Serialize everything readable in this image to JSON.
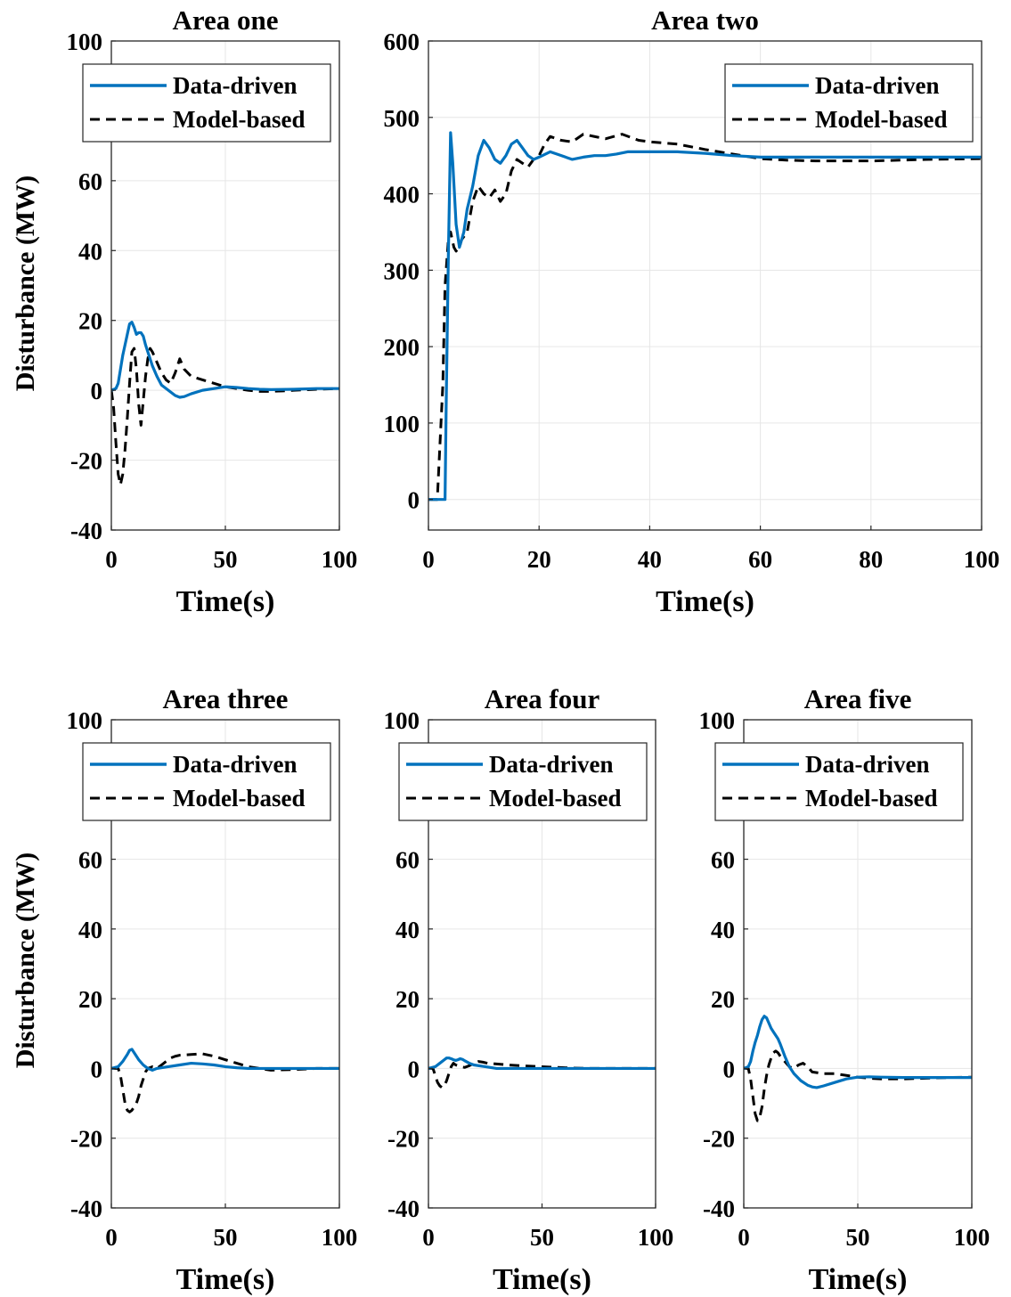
{
  "colors": {
    "data_driven": "#0072bd",
    "model_based": "#000000",
    "grid": "#e6e6e6"
  },
  "y_label": "Disturbance (MW)",
  "chart_data": [
    {
      "type": "line",
      "title": "Area one",
      "xlabel": "Time(s)",
      "ylabel": "Disturbance (MW)",
      "xlim": [
        0,
        100
      ],
      "ylim": [
        -40,
        100
      ],
      "xticks": [
        0,
        50,
        100
      ],
      "yticks": [
        -40,
        -20,
        0,
        20,
        40,
        60,
        100
      ],
      "grid": true,
      "legend_position": "top-right",
      "series": [
        {
          "name": "Data-driven",
          "style": "solid",
          "x": [
            0,
            2,
            3,
            4,
            5,
            6,
            7,
            8,
            9,
            10,
            11,
            12,
            13,
            14,
            15,
            16,
            18,
            20,
            22,
            25,
            28,
            30,
            32,
            35,
            40,
            45,
            50,
            55,
            60,
            65,
            70,
            80,
            90,
            100
          ],
          "y": [
            0,
            0.5,
            2,
            6,
            10,
            13,
            16,
            19,
            19.5,
            18,
            16,
            16.5,
            16.5,
            15.5,
            13,
            11,
            7,
            4,
            1.5,
            0,
            -1.5,
            -2,
            -1.8,
            -1,
            0,
            0.5,
            1,
            0.8,
            0.5,
            0.3,
            0.2,
            0.3,
            0.5,
            0.5
          ]
        },
        {
          "name": "Model-based",
          "style": "dashed",
          "x": [
            0,
            1,
            2,
            3,
            4,
            5,
            6,
            7,
            8,
            9,
            10,
            11,
            12,
            13,
            14,
            15,
            16,
            17,
            18,
            20,
            22,
            24,
            26,
            28,
            30,
            32,
            35,
            40,
            45,
            50,
            55,
            60,
            65,
            70,
            75,
            80,
            90,
            100
          ],
          "y": [
            0,
            -5,
            -15,
            -24,
            -27,
            -24,
            -17,
            -8,
            2,
            11,
            12,
            6,
            -4,
            -10,
            -3,
            4,
            9,
            12,
            11,
            8,
            5,
            3,
            2,
            5,
            9,
            6,
            4,
            3,
            2,
            1,
            0.5,
            0,
            -0.3,
            -0.3,
            -0.2,
            0,
            0.3,
            0.5
          ]
        }
      ]
    },
    {
      "type": "line",
      "title": "Area two",
      "xlabel": "Time(s)",
      "ylabel": "",
      "xlim": [
        0,
        100
      ],
      "ylim": [
        -40,
        600
      ],
      "xticks": [
        0,
        20,
        40,
        60,
        80,
        100
      ],
      "yticks": [
        0,
        100,
        200,
        300,
        400,
        500,
        600
      ],
      "grid": true,
      "legend_position": "top-right",
      "series": [
        {
          "name": "Data-driven",
          "style": "solid",
          "x": [
            0,
            3,
            3.2,
            3.6,
            4,
            4.4,
            5,
            5.6,
            6.4,
            7,
            8,
            9,
            10,
            11,
            12,
            13,
            14,
            15,
            16,
            17,
            18,
            19,
            20,
            22,
            24,
            26,
            28,
            30,
            32,
            34,
            36,
            40,
            45,
            50,
            55,
            60,
            70,
            80,
            90,
            100
          ],
          "y": [
            0,
            0,
            120,
            320,
            480,
            440,
            360,
            330,
            350,
            380,
            410,
            450,
            470,
            460,
            445,
            440,
            450,
            465,
            470,
            460,
            450,
            445,
            448,
            455,
            450,
            445,
            448,
            450,
            450,
            452,
            455,
            455,
            455,
            453,
            450,
            448,
            448,
            448,
            448,
            448
          ]
        },
        {
          "name": "Model-based",
          "style": "dashed",
          "x": [
            0,
            1.6,
            2,
            2.6,
            3,
            3.6,
            4,
            4.6,
            5,
            5.6,
            6,
            7,
            8,
            9,
            10,
            11,
            12,
            13,
            14,
            15,
            16,
            17,
            18,
            19,
            20,
            21,
            22,
            24,
            26,
            28,
            30,
            32,
            35,
            38,
            40,
            45,
            50,
            55,
            60,
            65,
            70,
            80,
            90,
            100
          ],
          "y": [
            0,
            0,
            60,
            150,
            280,
            340,
            350,
            330,
            325,
            330,
            340,
            350,
            390,
            410,
            400,
            395,
            405,
            390,
            400,
            430,
            445,
            440,
            435,
            445,
            450,
            465,
            475,
            470,
            468,
            478,
            475,
            472,
            478,
            470,
            468,
            465,
            458,
            452,
            446,
            444,
            443,
            443,
            445,
            446
          ]
        }
      ]
    },
    {
      "type": "line",
      "title": "Area three",
      "xlabel": "Time(s)",
      "ylabel": "Disturbance (MW)",
      "xlim": [
        0,
        100
      ],
      "ylim": [
        -40,
        100
      ],
      "xticks": [
        0,
        50,
        100
      ],
      "yticks": [
        -40,
        -20,
        0,
        20,
        40,
        60,
        100
      ],
      "grid": true,
      "legend_position": "top-right",
      "series": [
        {
          "name": "Data-driven",
          "style": "solid",
          "x": [
            0,
            3,
            5,
            7,
            8,
            9,
            10,
            12,
            14,
            16,
            18,
            20,
            25,
            30,
            35,
            40,
            45,
            50,
            55,
            60,
            70,
            80,
            90,
            100
          ],
          "y": [
            0,
            0.5,
            2,
            4,
            5.2,
            5.5,
            4.5,
            2.5,
            1,
            0,
            -0.5,
            0,
            0.5,
            1,
            1.5,
            1.3,
            1,
            0.5,
            0.2,
            0,
            0,
            0,
            0,
            0
          ]
        },
        {
          "name": "Model-based",
          "style": "dashed",
          "x": [
            0,
            3,
            4,
            5,
            6,
            7,
            8,
            9,
            10,
            11,
            12,
            13,
            14,
            15,
            16,
            18,
            20,
            22,
            24,
            26,
            28,
            30,
            35,
            40,
            45,
            50,
            55,
            60,
            65,
            70,
            80,
            90,
            100
          ],
          "y": [
            0,
            0,
            -2,
            -6,
            -10,
            -12,
            -12.5,
            -12,
            -11,
            -10,
            -8,
            -5,
            -3,
            -1,
            0,
            0.5,
            0,
            1,
            2,
            3,
            3.5,
            3.8,
            4,
            4.2,
            3.5,
            2.5,
            1.5,
            0.5,
            0,
            -0.5,
            -0.3,
            0,
            0
          ]
        }
      ]
    },
    {
      "type": "line",
      "title": "Area four",
      "xlabel": "Time(s)",
      "ylabel": "",
      "xlim": [
        0,
        100
      ],
      "ylim": [
        -40,
        100
      ],
      "xticks": [
        0,
        50,
        100
      ],
      "yticks": [
        -40,
        -20,
        0,
        20,
        40,
        60,
        100
      ],
      "grid": true,
      "legend_position": "top-right",
      "series": [
        {
          "name": "Data-driven",
          "style": "solid",
          "x": [
            0,
            3,
            5,
            7,
            8,
            9,
            10,
            11,
            12,
            13,
            14,
            15,
            16,
            18,
            20,
            25,
            30,
            35,
            40,
            50,
            60,
            70,
            80,
            90,
            100
          ],
          "y": [
            0,
            0.5,
            1.5,
            2.5,
            3,
            3,
            2.8,
            2.5,
            2.3,
            2.5,
            2.8,
            2.6,
            2.2,
            1.5,
            1,
            0.5,
            0,
            0,
            0,
            0,
            0,
            0,
            0,
            0,
            0
          ]
        },
        {
          "name": "Model-based",
          "style": "dashed",
          "x": [
            0,
            2,
            3,
            4,
            5,
            6,
            7,
            8,
            9,
            10,
            11,
            12,
            14,
            16,
            18,
            20,
            22,
            24,
            26,
            30,
            35,
            40,
            50,
            60,
            70,
            80,
            90,
            100
          ],
          "y": [
            0,
            0,
            -2,
            -4,
            -5,
            -5.5,
            -5,
            -3.5,
            -1.5,
            0.5,
            1.5,
            1,
            0.5,
            0.3,
            0.8,
            1.5,
            2,
            1.8,
            1.5,
            1.3,
            1,
            0.8,
            0.5,
            0.2,
            0,
            0,
            0,
            0
          ]
        }
      ]
    },
    {
      "type": "line",
      "title": "Area five",
      "xlabel": "Time(s)",
      "ylabel": "",
      "xlim": [
        0,
        100
      ],
      "ylim": [
        -40,
        100
      ],
      "xticks": [
        0,
        50,
        100
      ],
      "yticks": [
        -40,
        -20,
        0,
        20,
        40,
        60,
        100
      ],
      "grid": true,
      "legend_position": "top-right",
      "series": [
        {
          "name": "Data-driven",
          "style": "solid",
          "x": [
            0,
            2,
            3,
            4,
            5,
            6,
            7,
            8,
            9,
            10,
            11,
            12,
            13,
            14,
            15,
            16,
            18,
            20,
            22,
            25,
            28,
            30,
            32,
            35,
            40,
            45,
            50,
            55,
            60,
            70,
            80,
            90,
            100
          ],
          "y": [
            0,
            0.5,
            2,
            5,
            7.5,
            9.5,
            12,
            14,
            15,
            14.5,
            13,
            11.5,
            10.5,
            9.5,
            8.5,
            7,
            3.5,
            0.5,
            -1.5,
            -3.5,
            -4.8,
            -5.3,
            -5.5,
            -5,
            -4,
            -3,
            -2.5,
            -2.4,
            -2.5,
            -2.6,
            -2.6,
            -2.6,
            -2.6
          ]
        },
        {
          "name": "Model-based",
          "style": "dashed",
          "x": [
            0,
            2,
            3,
            4,
            5,
            6,
            7,
            8,
            9,
            10,
            11,
            12,
            13,
            14,
            15,
            16,
            18,
            20,
            22,
            24,
            26,
            28,
            30,
            35,
            40,
            45,
            50,
            55,
            60,
            70,
            80,
            90,
            100
          ],
          "y": [
            0,
            0,
            -3,
            -8,
            -13,
            -15,
            -14,
            -11,
            -6,
            -2,
            1,
            3,
            4.5,
            5,
            4.5,
            3.5,
            2,
            0.5,
            0,
            1,
            1.5,
            0.5,
            -1,
            -1.5,
            -1.5,
            -2,
            -2.5,
            -2.8,
            -3,
            -3,
            -2.8,
            -2.6,
            -2.5
          ]
        }
      ]
    }
  ]
}
